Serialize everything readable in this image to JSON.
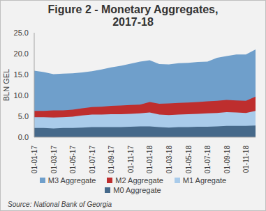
{
  "chart_data": {
    "type": "area",
    "title": "Figure 2 - Monetary Aggregates, 2017-18",
    "subtitle": "Source: National Bank of Georgia",
    "y_label": "BLN GEL",
    "categories": [
      "01-01-17",
      null,
      "01-03-17",
      null,
      "01-05-17",
      null,
      "01-07-17",
      null,
      "01-09-17",
      null,
      "01-11-17",
      null,
      "01-01-18",
      null,
      "01-03-18",
      null,
      "01-05-18",
      null,
      "01-07-18",
      null,
      "01-09-18",
      null,
      "01-11-18",
      null
    ],
    "series": [
      {
        "name": "M3 Aggregate",
        "color": "#6F9FCB",
        "values": [
          15.9,
          15.6,
          15.1,
          15.2,
          15.3,
          15.5,
          15.8,
          16.2,
          16.7,
          17.1,
          17.6,
          18.1,
          18.4,
          17.5,
          17.4,
          17.7,
          17.8,
          18.0,
          18.1,
          19.0,
          19.4,
          19.8,
          19.8,
          21.0
        ]
      },
      {
        "name": "M2 Aggregate",
        "color": "#BE2E2E",
        "values": [
          6.3,
          6.3,
          6.4,
          6.4,
          6.6,
          6.9,
          7.2,
          7.3,
          7.5,
          7.6,
          7.7,
          7.8,
          8.4,
          8.0,
          8.1,
          8.2,
          8.3,
          8.4,
          8.6,
          8.7,
          8.9,
          8.8,
          8.7,
          9.7
        ]
      },
      {
        "name": "M1 Agregate",
        "color": "#A9CBEA",
        "values": [
          4.8,
          4.8,
          4.7,
          4.8,
          4.9,
          5.2,
          5.4,
          5.4,
          5.5,
          5.5,
          5.6,
          5.7,
          5.9,
          5.4,
          5.3,
          5.4,
          5.5,
          5.6,
          5.7,
          5.8,
          6.0,
          5.9,
          5.8,
          6.3
        ]
      },
      {
        "name": "M0 Aggregate",
        "color": "#46698A",
        "values": [
          2.2,
          2.2,
          2.1,
          2.2,
          2.2,
          2.3,
          2.4,
          2.4,
          2.4,
          2.4,
          2.5,
          2.6,
          2.6,
          2.4,
          2.3,
          2.4,
          2.4,
          2.5,
          2.5,
          2.6,
          2.7,
          2.7,
          2.7,
          2.8
        ]
      }
    ],
    "ylim": [
      0,
      25
    ],
    "yticks": [
      {
        "value": 0,
        "label": "0.0"
      },
      {
        "value": 5,
        "label": "5.0"
      },
      {
        "value": 10,
        "label": "10.0"
      },
      {
        "value": 15,
        "label": "15.0"
      },
      {
        "value": 20,
        "label": "20.0"
      },
      {
        "value": 25,
        "label": "25.0"
      }
    ],
    "stacked": false,
    "grid": false,
    "legend": "bottom"
  }
}
